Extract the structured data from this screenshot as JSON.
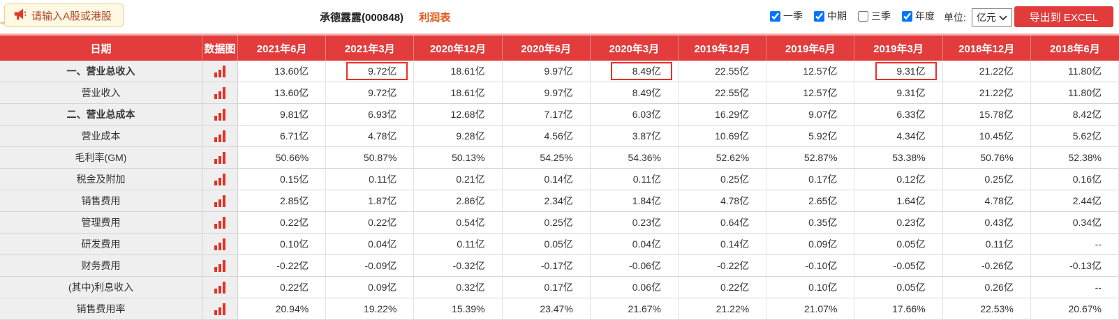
{
  "topbar": {
    "search_hint": "请输入A股或港股",
    "stock_title": "承德露露(000848)",
    "report_name": "利润表",
    "period_filters": [
      {
        "label": "一季",
        "checked": true
      },
      {
        "label": "中期",
        "checked": true
      },
      {
        "label": "三季",
        "checked": false
      },
      {
        "label": "年度",
        "checked": true
      }
    ],
    "unit_label": "单位:",
    "unit_value": "亿元",
    "export_label": "导出到 EXCEL"
  },
  "table": {
    "date_header": "日期",
    "chart_header": "数据图",
    "columns": [
      "2021年6月",
      "2021年3月",
      "2020年12月",
      "2020年6月",
      "2020年3月",
      "2019年12月",
      "2019年6月",
      "2019年3月",
      "2018年12月",
      "2018年6月"
    ],
    "rows": [
      {
        "label": "一、营业总收入",
        "bold": true,
        "highlights": [
          1,
          4,
          7
        ],
        "values": [
          "13.60亿",
          "9.72亿",
          "18.61亿",
          "9.97亿",
          "8.49亿",
          "22.55亿",
          "12.57亿",
          "9.31亿",
          "21.22亿",
          "11.80亿"
        ]
      },
      {
        "label": "营业收入",
        "bold": false,
        "values": [
          "13.60亿",
          "9.72亿",
          "18.61亿",
          "9.97亿",
          "8.49亿",
          "22.55亿",
          "12.57亿",
          "9.31亿",
          "21.22亿",
          "11.80亿"
        ]
      },
      {
        "label": "二、营业总成本",
        "bold": true,
        "values": [
          "9.81亿",
          "6.93亿",
          "12.68亿",
          "7.17亿",
          "6.03亿",
          "16.29亿",
          "9.07亿",
          "6.33亿",
          "15.78亿",
          "8.42亿"
        ]
      },
      {
        "label": "营业成本",
        "bold": false,
        "values": [
          "6.71亿",
          "4.78亿",
          "9.28亿",
          "4.56亿",
          "3.87亿",
          "10.69亿",
          "5.92亿",
          "4.34亿",
          "10.45亿",
          "5.62亿"
        ]
      },
      {
        "label": "毛利率(GM)",
        "bold": false,
        "values": [
          "50.66%",
          "50.87%",
          "50.13%",
          "54.25%",
          "54.36%",
          "52.62%",
          "52.87%",
          "53.38%",
          "50.76%",
          "52.38%"
        ]
      },
      {
        "label": "税金及附加",
        "bold": false,
        "values": [
          "0.15亿",
          "0.11亿",
          "0.21亿",
          "0.14亿",
          "0.11亿",
          "0.25亿",
          "0.17亿",
          "0.12亿",
          "0.25亿",
          "0.16亿"
        ]
      },
      {
        "label": "销售费用",
        "bold": false,
        "values": [
          "2.85亿",
          "1.87亿",
          "2.86亿",
          "2.34亿",
          "1.84亿",
          "4.78亿",
          "2.65亿",
          "1.64亿",
          "4.78亿",
          "2.44亿"
        ]
      },
      {
        "label": "管理费用",
        "bold": false,
        "values": [
          "0.22亿",
          "0.22亿",
          "0.54亿",
          "0.25亿",
          "0.23亿",
          "0.64亿",
          "0.35亿",
          "0.23亿",
          "0.43亿",
          "0.34亿"
        ]
      },
      {
        "label": "研发费用",
        "bold": false,
        "values": [
          "0.10亿",
          "0.04亿",
          "0.11亿",
          "0.05亿",
          "0.04亿",
          "0.14亿",
          "0.09亿",
          "0.05亿",
          "0.11亿",
          "--"
        ]
      },
      {
        "label": "财务费用",
        "bold": false,
        "values": [
          "-0.22亿",
          "-0.09亿",
          "-0.32亿",
          "-0.17亿",
          "-0.06亿",
          "-0.22亿",
          "-0.10亿",
          "-0.05亿",
          "-0.26亿",
          "-0.13亿"
        ]
      },
      {
        "label": "(其中)利息收入",
        "bold": false,
        "values": [
          "0.22亿",
          "0.09亿",
          "0.32亿",
          "0.17亿",
          "0.06亿",
          "0.22亿",
          "0.10亿",
          "0.05亿",
          "0.26亿",
          "--"
        ]
      },
      {
        "label": "销售费用率",
        "bold": false,
        "values": [
          "20.94%",
          "19.22%",
          "15.39%",
          "23.47%",
          "21.67%",
          "21.22%",
          "21.07%",
          "17.66%",
          "22.53%",
          "20.67%"
        ]
      }
    ]
  },
  "colors": {
    "accent_red": "#e23b3b",
    "highlight_border": "#e8302a",
    "report_name_orange": "#e25316",
    "bubble_bg": "#fdf9e2",
    "row_label_bg": "#f0eff0"
  }
}
